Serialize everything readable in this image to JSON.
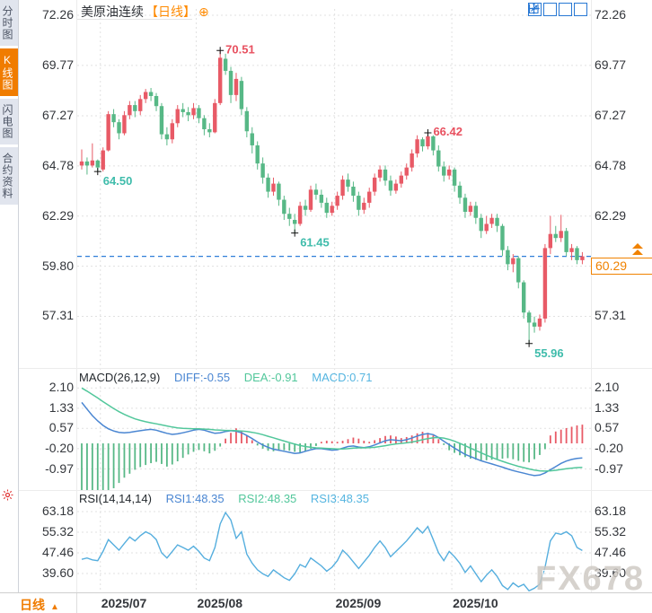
{
  "window": {
    "symbol": "美原油连续",
    "period": "【日线】",
    "add_icon": "⊕"
  },
  "sidebar": {
    "tabs": [
      {
        "label": "分时图",
        "active": false
      },
      {
        "label": "K线图",
        "active": true
      },
      {
        "label": "闪电图",
        "active": false
      },
      {
        "label": "合约资料",
        "active": false
      }
    ]
  },
  "toolbar": {
    "icons": [
      "pan",
      "zoom-range",
      "zoom-scale",
      "page-forward"
    ]
  },
  "bottom_bar": {
    "period": "日线",
    "arrow": "▲"
  },
  "watermark": "FX678",
  "price_box": {
    "value": "60.29"
  },
  "colors": {
    "up": "#e85a66",
    "down": "#57b886",
    "label_red": "#e8505f",
    "label_teal": "#3fbcab",
    "diff_blue": "#4a86d2",
    "dea_green": "#52c79b",
    "macd_cyan": "#55b5e0",
    "rsi_line": "#55aede",
    "last_line": "#2f7ed8",
    "accent_orange": "#f08200",
    "grid": "#e1e1e1",
    "axis_text": "#33363b"
  },
  "chart_data": {
    "type": "candlestick+macd+rsi",
    "title": "美原油连续 日线",
    "x_ticks": [
      {
        "label": "2025/07",
        "i": 4
      },
      {
        "label": "2025/08",
        "i": 22
      },
      {
        "label": "2025/09",
        "i": 48
      },
      {
        "label": "2025/10",
        "i": 70
      }
    ],
    "main": {
      "y_ticks": [
        72.26,
        69.77,
        67.27,
        64.78,
        62.29,
        59.8,
        57.31
      ],
      "last_price": 60.29,
      "annotations": [
        {
          "text": "64.50",
          "i": 3,
          "price": 64.5,
          "side": "below",
          "color": "teal"
        },
        {
          "text": "70.51",
          "i": 26,
          "price": 70.51,
          "side": "above",
          "color": "red"
        },
        {
          "text": "61.45",
          "i": 40,
          "price": 61.45,
          "side": "below",
          "color": "teal"
        },
        {
          "text": "66.42",
          "i": 65,
          "price": 66.42,
          "side": "above",
          "color": "red"
        },
        {
          "text": "55.96",
          "i": 84,
          "price": 55.96,
          "side": "below",
          "color": "teal"
        }
      ],
      "candles": [
        [
          64.8,
          65.6,
          64.6,
          65.0
        ],
        [
          65.0,
          65.2,
          64.35,
          64.8
        ],
        [
          64.8,
          65.9,
          64.7,
          65.05
        ],
        [
          65.05,
          65.1,
          64.5,
          64.7
        ],
        [
          64.6,
          65.7,
          64.5,
          65.55
        ],
        [
          65.55,
          67.5,
          65.5,
          67.35
        ],
        [
          67.35,
          67.6,
          66.7,
          66.95
        ],
        [
          66.95,
          67.1,
          66.1,
          66.4
        ],
        [
          66.4,
          67.5,
          66.3,
          67.3
        ],
        [
          67.3,
          68.0,
          67.1,
          67.8
        ],
        [
          67.8,
          68.0,
          67.2,
          67.5
        ],
        [
          67.5,
          68.3,
          67.3,
          68.1
        ],
        [
          68.1,
          68.6,
          67.9,
          68.45
        ],
        [
          68.45,
          68.65,
          68.0,
          68.25
        ],
        [
          68.25,
          68.4,
          67.5,
          67.75
        ],
        [
          67.75,
          67.9,
          66.1,
          66.35
        ],
        [
          66.35,
          66.7,
          65.8,
          66.1
        ],
        [
          66.1,
          67.1,
          65.9,
          66.9
        ],
        [
          66.9,
          67.8,
          66.7,
          67.6
        ],
        [
          67.6,
          67.9,
          67.2,
          67.45
        ],
        [
          67.45,
          67.7,
          67.0,
          67.3
        ],
        [
          67.3,
          67.9,
          67.1,
          67.65
        ],
        [
          67.65,
          67.8,
          66.9,
          67.15
        ],
        [
          67.15,
          67.3,
          66.3,
          66.6
        ],
        [
          66.6,
          66.9,
          66.2,
          66.45
        ],
        [
          66.45,
          68.1,
          66.4,
          67.9
        ],
        [
          67.9,
          70.51,
          67.8,
          70.15
        ],
        [
          70.1,
          70.35,
          69.3,
          69.5
        ],
        [
          69.5,
          69.7,
          67.9,
          68.3
        ],
        [
          68.3,
          69.4,
          68.0,
          69.1
        ],
        [
          69.0,
          69.2,
          67.3,
          67.6
        ],
        [
          67.5,
          67.7,
          66.2,
          66.5
        ],
        [
          66.4,
          66.7,
          65.4,
          65.8
        ],
        [
          65.8,
          66.0,
          64.6,
          64.9
        ],
        [
          64.9,
          65.2,
          63.9,
          64.2
        ],
        [
          64.2,
          64.4,
          63.2,
          63.5
        ],
        [
          63.5,
          64.2,
          63.3,
          63.9
        ],
        [
          63.9,
          64.0,
          62.8,
          63.1
        ],
        [
          63.1,
          63.3,
          62.1,
          62.4
        ],
        [
          62.4,
          62.7,
          61.8,
          62.15
        ],
        [
          62.1,
          62.4,
          61.45,
          61.9
        ],
        [
          61.9,
          63.0,
          61.8,
          62.8
        ],
        [
          62.8,
          63.1,
          62.3,
          62.6
        ],
        [
          62.6,
          63.8,
          62.5,
          63.6
        ],
        [
          63.6,
          63.9,
          63.1,
          63.35
        ],
        [
          63.35,
          63.6,
          62.7,
          62.95
        ],
        [
          62.95,
          63.2,
          62.2,
          62.45
        ],
        [
          62.45,
          63.0,
          62.3,
          62.8
        ],
        [
          62.8,
          63.5,
          62.6,
          63.3
        ],
        [
          63.3,
          64.3,
          63.1,
          64.1
        ],
        [
          64.1,
          64.4,
          63.5,
          63.75
        ],
        [
          63.75,
          64.0,
          63.0,
          63.3
        ],
        [
          63.3,
          63.5,
          62.3,
          62.6
        ],
        [
          62.6,
          63.2,
          62.4,
          62.95
        ],
        [
          62.95,
          63.7,
          62.7,
          63.5
        ],
        [
          63.5,
          64.4,
          63.3,
          64.2
        ],
        [
          64.2,
          64.8,
          64.0,
          64.6
        ],
        [
          64.6,
          64.8,
          63.8,
          64.05
        ],
        [
          64.05,
          64.3,
          63.3,
          63.55
        ],
        [
          63.55,
          64.1,
          63.4,
          63.9
        ],
        [
          63.9,
          64.5,
          63.7,
          64.3
        ],
        [
          64.3,
          64.9,
          64.1,
          64.7
        ],
        [
          64.7,
          65.6,
          64.5,
          65.4
        ],
        [
          65.4,
          66.3,
          65.2,
          66.1
        ],
        [
          66.1,
          66.2,
          65.5,
          65.75
        ],
        [
          65.75,
          66.42,
          65.6,
          66.25
        ],
        [
          66.25,
          66.3,
          65.3,
          65.55
        ],
        [
          65.55,
          65.8,
          64.5,
          64.75
        ],
        [
          64.75,
          65.0,
          64.0,
          64.3
        ],
        [
          64.3,
          64.8,
          64.1,
          64.6
        ],
        [
          64.6,
          64.7,
          63.5,
          63.8
        ],
        [
          63.8,
          64.0,
          62.9,
          63.2
        ],
        [
          63.2,
          63.4,
          62.2,
          62.5
        ],
        [
          62.5,
          63.0,
          62.3,
          62.8
        ],
        [
          62.8,
          63.0,
          61.9,
          62.2
        ],
        [
          62.2,
          62.4,
          61.2,
          61.55
        ],
        [
          61.55,
          62.3,
          61.4,
          61.9
        ],
        [
          61.9,
          62.4,
          61.7,
          62.2
        ],
        [
          62.2,
          62.4,
          61.5,
          61.8
        ],
        [
          61.8,
          61.9,
          60.3,
          60.6
        ],
        [
          60.6,
          60.8,
          59.6,
          59.9
        ],
        [
          59.9,
          60.4,
          59.5,
          60.2
        ],
        [
          60.2,
          60.3,
          58.7,
          59.0
        ],
        [
          59.0,
          59.1,
          57.2,
          57.5
        ],
        [
          57.5,
          57.6,
          55.96,
          57.0
        ],
        [
          57.0,
          57.3,
          56.5,
          56.8
        ],
        [
          56.8,
          57.4,
          56.6,
          57.2
        ],
        [
          57.2,
          60.9,
          57.0,
          60.7
        ],
        [
          60.7,
          62.3,
          60.4,
          61.4
        ],
        [
          61.4,
          61.8,
          61.0,
          61.2
        ],
        [
          61.2,
          62.35,
          61.0,
          61.55
        ],
        [
          61.55,
          61.7,
          60.3,
          60.5
        ],
        [
          60.5,
          60.9,
          60.1,
          60.7
        ],
        [
          60.7,
          60.8,
          59.9,
          60.1
        ],
        [
          60.1,
          60.5,
          59.9,
          60.29
        ]
      ]
    },
    "macd": {
      "header": "MACD(26,12,9)",
      "diff_label": "DIFF:-0.55",
      "dea_label": "DEA:-0.91",
      "macd_label": "MACD:0.71",
      "y_ticks": [
        2.1,
        1.33,
        0.57,
        -0.2,
        -0.97
      ],
      "diff": [
        1.55,
        1.3,
        1.05,
        0.85,
        0.68,
        0.55,
        0.47,
        0.42,
        0.4,
        0.42,
        0.45,
        0.48,
        0.51,
        0.53,
        0.5,
        0.44,
        0.38,
        0.34,
        0.36,
        0.4,
        0.45,
        0.5,
        0.53,
        0.5,
        0.44,
        0.38,
        0.4,
        0.45,
        0.48,
        0.46,
        0.4,
        0.3,
        0.18,
        0.05,
        -0.06,
        -0.15,
        -0.22,
        -0.26,
        -0.3,
        -0.34,
        -0.38,
        -0.36,
        -0.3,
        -0.24,
        -0.2,
        -0.2,
        -0.23,
        -0.26,
        -0.24,
        -0.18,
        -0.12,
        -0.1,
        -0.14,
        -0.16,
        -0.13,
        -0.06,
        0.02,
        0.1,
        0.14,
        0.12,
        0.1,
        0.14,
        0.2,
        0.28,
        0.34,
        0.37,
        0.33,
        0.22,
        0.08,
        -0.05,
        -0.18,
        -0.3,
        -0.42,
        -0.5,
        -0.58,
        -0.66,
        -0.72,
        -0.78,
        -0.84,
        -0.9,
        -0.97,
        -1.03,
        -1.08,
        -1.13,
        -1.18,
        -1.22,
        -1.2,
        -1.12,
        -1.0,
        -0.88,
        -0.76,
        -0.67,
        -0.61,
        -0.57,
        -0.55
      ],
      "dea": [
        2.1,
        1.98,
        1.85,
        1.72,
        1.58,
        1.45,
        1.32,
        1.2,
        1.1,
        1.01,
        0.93,
        0.87,
        0.82,
        0.78,
        0.74,
        0.7,
        0.66,
        0.62,
        0.59,
        0.57,
        0.56,
        0.55,
        0.55,
        0.54,
        0.53,
        0.51,
        0.5,
        0.49,
        0.49,
        0.48,
        0.47,
        0.45,
        0.42,
        0.38,
        0.33,
        0.27,
        0.21,
        0.15,
        0.09,
        0.03,
        -0.03,
        -0.08,
        -0.12,
        -0.15,
        -0.17,
        -0.18,
        -0.19,
        -0.2,
        -0.21,
        -0.21,
        -0.2,
        -0.18,
        -0.17,
        -0.17,
        -0.16,
        -0.15,
        -0.12,
        -0.09,
        -0.05,
        -0.02,
        0.0,
        0.02,
        0.05,
        0.09,
        0.14,
        0.18,
        0.21,
        0.22,
        0.2,
        0.15,
        0.08,
        0.0,
        -0.09,
        -0.18,
        -0.27,
        -0.36,
        -0.45,
        -0.53,
        -0.61,
        -0.68,
        -0.75,
        -0.81,
        -0.87,
        -0.92,
        -0.97,
        -1.01,
        -1.04,
        -1.05,
        -1.04,
        -1.02,
        -0.99,
        -0.96,
        -0.94,
        -0.92,
        -0.91
      ],
      "hist": [
        -1.9,
        -2.2,
        -2.4,
        -2.3,
        -2.1,
        -1.9,
        -1.7,
        -1.5,
        -1.3,
        -1.15,
        -1.0,
        -0.9,
        -0.82,
        -0.75,
        -0.7,
        -0.78,
        -0.88,
        -0.8,
        -0.68,
        -0.55,
        -0.42,
        -0.32,
        -0.25,
        -0.3,
        -0.38,
        -0.28,
        -0.12,
        0.18,
        0.4,
        0.57,
        0.45,
        0.3,
        0.12,
        -0.08,
        -0.2,
        -0.28,
        -0.3,
        -0.28,
        -0.26,
        -0.28,
        -0.32,
        -0.36,
        -0.3,
        -0.2,
        -0.1,
        0.06,
        0.1,
        0.08,
        0.06,
        0.1,
        0.16,
        0.22,
        0.18,
        0.1,
        0.06,
        0.12,
        0.2,
        0.28,
        0.3,
        0.26,
        0.2,
        0.24,
        0.3,
        0.38,
        0.44,
        0.4,
        0.3,
        0.16,
        -0.06,
        -0.26,
        -0.36,
        -0.45,
        -0.52,
        -0.58,
        -0.62,
        -0.64,
        -0.64,
        -0.62,
        -0.6,
        -0.58,
        -0.56,
        -0.6,
        -0.66,
        -0.7,
        -0.72,
        -0.6,
        -0.44,
        -0.22,
        0.3,
        0.45,
        0.52,
        0.58,
        0.63,
        0.68,
        0.71
      ]
    },
    "rsi": {
      "header": "RSI(14,14,14)",
      "rsi1_label": "RSI1:48.35",
      "rsi2_label": "RSI2:48.35",
      "rsi3_label": "RSI3:48.35",
      "y_ticks": [
        63.18,
        55.32,
        47.46,
        39.6
      ],
      "values": [
        45.0,
        45.5,
        44.8,
        44.5,
        48.0,
        52.5,
        50.5,
        48.5,
        51.0,
        53.5,
        52.0,
        54.0,
        55.5,
        54.5,
        52.5,
        47.5,
        45.5,
        48.0,
        50.5,
        49.5,
        48.5,
        50.0,
        48.0,
        45.5,
        44.5,
        49.5,
        58.5,
        62.8,
        60.0,
        53.0,
        55.5,
        47.0,
        43.5,
        41.0,
        39.5,
        38.5,
        41.0,
        39.5,
        38.0,
        37.0,
        39.5,
        43.0,
        42.0,
        45.5,
        44.0,
        42.5,
        40.5,
        42.0,
        44.5,
        48.5,
        46.5,
        44.0,
        41.5,
        44.0,
        46.5,
        49.5,
        52.0,
        49.5,
        46.0,
        48.0,
        50.0,
        52.0,
        54.5,
        57.0,
        55.0,
        57.5,
        52.5,
        47.5,
        44.5,
        48.0,
        46.0,
        43.5,
        40.0,
        42.5,
        39.5,
        36.5,
        39.0,
        41.0,
        38.5,
        35.0,
        33.5,
        36.0,
        34.5,
        35.5,
        33.0,
        34.0,
        35.5,
        42.0,
        52.0,
        55.0,
        54.5,
        55.5,
        54.0,
        49.5,
        48.35
      ]
    }
  }
}
